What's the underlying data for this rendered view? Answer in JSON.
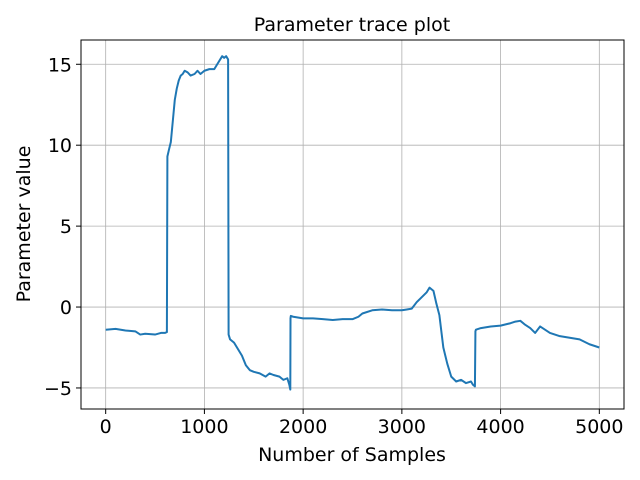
{
  "chart_data": {
    "type": "line",
    "title": "Parameter trace plot",
    "xlabel": "Number of Samples",
    "ylabel": "Parameter value",
    "xlim": [
      -250,
      5250
    ],
    "ylim": [
      -6.3,
      16.5
    ],
    "xticks": [
      0,
      1000,
      2000,
      3000,
      4000,
      5000
    ],
    "xtick_labels": [
      "0",
      "1000",
      "2000",
      "3000",
      "4000",
      "5000"
    ],
    "yticks": [
      -5,
      0,
      5,
      10,
      15
    ],
    "ytick_labels": [
      "−5",
      "0",
      "5",
      "10",
      "15"
    ],
    "grid": true,
    "line_color": "#1f77b4",
    "series": [
      {
        "x": [
          0,
          100,
          200,
          300,
          350,
          400,
          500,
          560,
          600,
          620,
          625,
          640,
          660,
          680,
          700,
          720,
          740,
          760,
          780,
          800,
          830,
          860,
          900,
          930,
          960,
          1000,
          1050,
          1100,
          1150,
          1180,
          1200,
          1220,
          1240,
          1245,
          1250,
          1260,
          1300,
          1340,
          1380,
          1420,
          1460,
          1500,
          1560,
          1620,
          1660,
          1700,
          1760,
          1800,
          1840,
          1860,
          1870,
          1872,
          1875,
          1900,
          2000,
          2100,
          2200,
          2300,
          2400,
          2500,
          2560,
          2600,
          2700,
          2800,
          2900,
          3000,
          3050,
          3100,
          3150,
          3200,
          3250,
          3280,
          3300,
          3320,
          3350,
          3380,
          3400,
          3420,
          3440,
          3460,
          3500,
          3550,
          3600,
          3650,
          3700,
          3720,
          3740,
          3745,
          3750,
          3800,
          3900,
          4000,
          4100,
          4150,
          4200,
          4250,
          4300,
          4350,
          4400,
          4450,
          4500,
          4600,
          4700,
          4800,
          4900,
          5000
        ],
        "y": [
          -1.4,
          -1.35,
          -1.45,
          -1.5,
          -1.7,
          -1.65,
          -1.7,
          -1.6,
          -1.6,
          -1.55,
          9.3,
          9.7,
          10.2,
          11.5,
          12.8,
          13.5,
          14.0,
          14.3,
          14.4,
          14.6,
          14.5,
          14.3,
          14.4,
          14.6,
          14.4,
          14.6,
          14.7,
          14.7,
          15.2,
          15.5,
          15.4,
          15.5,
          15.3,
          -1.7,
          -1.8,
          -2.0,
          -2.2,
          -2.6,
          -3.0,
          -3.6,
          -3.9,
          -4.0,
          -4.1,
          -4.3,
          -4.1,
          -4.2,
          -4.3,
          -4.5,
          -4.4,
          -4.8,
          -5.1,
          -0.7,
          -0.55,
          -0.6,
          -0.7,
          -0.7,
          -0.75,
          -0.8,
          -0.75,
          -0.75,
          -0.6,
          -0.4,
          -0.2,
          -0.15,
          -0.2,
          -0.2,
          -0.15,
          -0.1,
          0.3,
          0.6,
          0.9,
          1.2,
          1.1,
          1.0,
          0.2,
          -0.5,
          -1.5,
          -2.5,
          -3.0,
          -3.5,
          -4.3,
          -4.6,
          -4.5,
          -4.7,
          -4.6,
          -4.8,
          -4.9,
          -1.5,
          -1.4,
          -1.3,
          -1.2,
          -1.15,
          -1.0,
          -0.9,
          -0.85,
          -1.1,
          -1.3,
          -1.6,
          -1.2,
          -1.4,
          -1.6,
          -1.8,
          -1.9,
          -2.0,
          -2.3,
          -2.5
        ]
      }
    ]
  }
}
